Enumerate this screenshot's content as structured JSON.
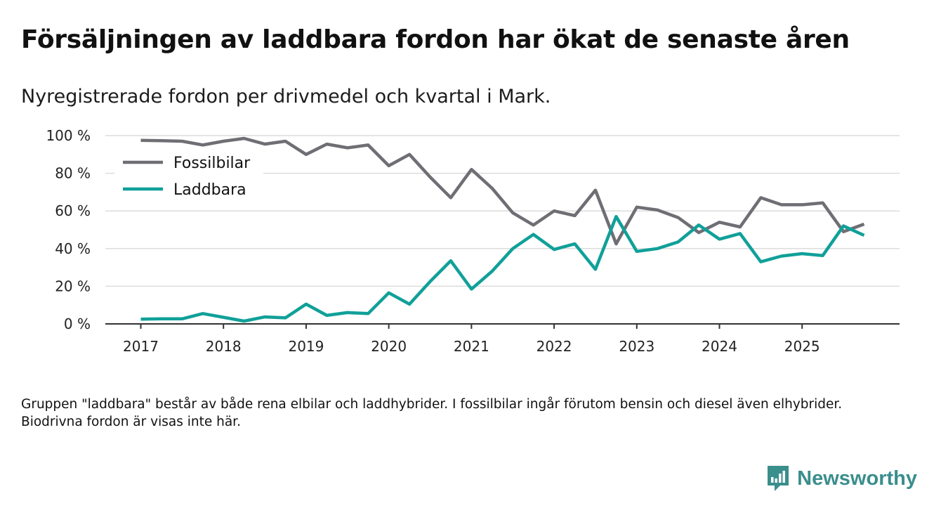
{
  "title": "Försäljningen av laddbara fordon har ökat de senaste åren",
  "subtitle": "Nyregistrerade fordon per drivmedel och kvartal i Mark.",
  "note": "Gruppen \"laddbara\" består av både rena elbilar och laddhybrider. I fossilbilar ingår förutom bensin och diesel även elhybrider. Biodrivna fordon är visas inte här.",
  "brand": {
    "name": "Newsworthy",
    "icon": "bar-chart-logo-icon",
    "color": "#3a8e8c"
  },
  "chart_data": {
    "type": "line",
    "x_unit": "quarter",
    "x": [
      "2017 Q1",
      "2017 Q2",
      "2017 Q3",
      "2017 Q4",
      "2018 Q1",
      "2018 Q2",
      "2018 Q3",
      "2018 Q4",
      "2019 Q1",
      "2019 Q2",
      "2019 Q3",
      "2019 Q4",
      "2020 Q1",
      "2020 Q2",
      "2020 Q3",
      "2020 Q4",
      "2021 Q1",
      "2021 Q2",
      "2021 Q3",
      "2021 Q4",
      "2022 Q1",
      "2022 Q2",
      "2022 Q3",
      "2022 Q4",
      "2023 Q1",
      "2023 Q2",
      "2023 Q3",
      "2023 Q4",
      "2024 Q1",
      "2024 Q2",
      "2024 Q3",
      "2024 Q4",
      "2025 Q1",
      "2025 Q2",
      "2025 Q3",
      "2025 Q4"
    ],
    "xticks": [
      "2017",
      "2018",
      "2019",
      "2020",
      "2021",
      "2022",
      "2023",
      "2024",
      "2025"
    ],
    "xlim": [
      0,
      35
    ],
    "yticks": [
      0,
      20,
      40,
      60,
      80,
      100
    ],
    "ytick_labels": [
      "0 %",
      "20 %",
      "40 %",
      "60 %",
      "80 %",
      "100 %"
    ],
    "ylim": [
      0,
      100
    ],
    "grid": true,
    "legend_position": "top-left",
    "series": [
      {
        "name": "Fossilbilar",
        "color": "#6f6e74",
        "values": [
          97.5,
          97.3,
          97,
          95,
          97,
          98.5,
          95.5,
          97,
          90,
          95.5,
          93.5,
          95,
          84,
          90,
          78,
          67,
          82,
          72,
          59,
          52.5,
          60,
          57.5,
          71,
          42.5,
          62,
          60.5,
          56.5,
          48.5,
          54,
          51.5,
          67,
          63.3,
          63.3,
          64.3,
          49,
          53
        ]
      },
      {
        "name": "Laddbara",
        "color": "#10a099",
        "values": [
          2.5,
          2.7,
          2.7,
          5.5,
          3.5,
          1.5,
          3.7,
          3.2,
          10.5,
          4.5,
          6,
          5.5,
          16.5,
          10.5,
          22.5,
          33.5,
          18.5,
          28,
          40,
          47.5,
          39.5,
          42.5,
          29,
          57,
          38.5,
          40,
          43.5,
          52.5,
          45,
          48,
          33,
          36,
          37.3,
          36.3,
          52,
          47
        ]
      }
    ]
  }
}
